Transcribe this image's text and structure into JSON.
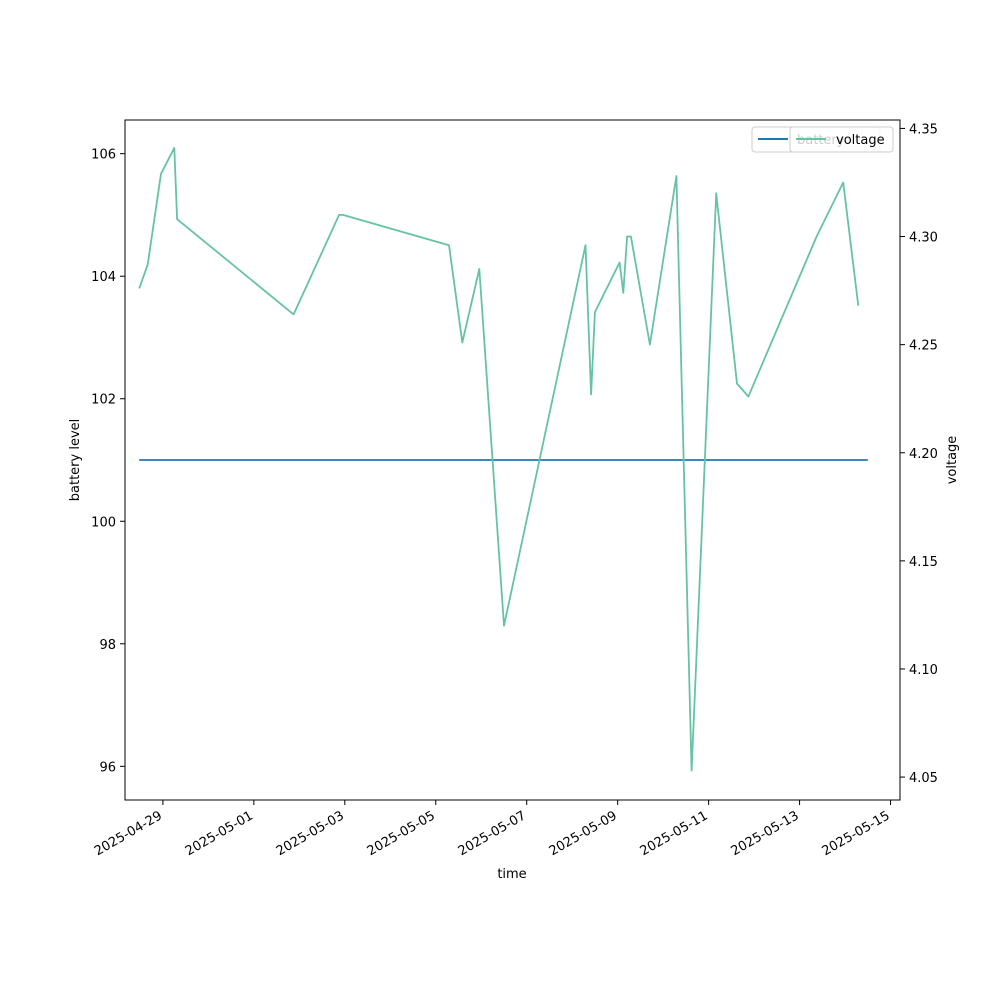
{
  "chart_data": {
    "type": "line",
    "xlabel": "time",
    "ylabel_left": "battery level",
    "ylabel_right": "voltage",
    "x_ticks": [
      "2025-04-29",
      "2025-05-01",
      "2025-05-03",
      "2025-05-05",
      "2025-05-07",
      "2025-05-09",
      "2025-05-11",
      "2025-05-13",
      "2025-05-15"
    ],
    "y_left_ticks": [
      "96",
      "98",
      "100",
      "102",
      "104",
      "106"
    ],
    "y_right_ticks": [
      "4.05",
      "4.10",
      "4.15",
      "4.20",
      "4.25",
      "4.30",
      "4.35"
    ],
    "xlim": [
      "2025-04-28T04:00",
      "2025-05-15T05:00"
    ],
    "ylim_left": [
      95.45,
      106.55
    ],
    "ylim_right": [
      4.0394,
      4.3539
    ],
    "legend_placement": "upper right",
    "grid": false,
    "series": [
      {
        "name": "battery",
        "axis": "left",
        "color": "#1f77b4",
        "x": [
          "2025-04-28T11:30",
          "2025-05-14T12:00"
        ],
        "y": [
          101,
          101
        ]
      },
      {
        "name": "voltage",
        "axis": "right",
        "color": "#66c2a5",
        "x": [
          "2025-04-28T11:30",
          "2025-04-28T16:00",
          "2025-04-28T23:00",
          "2025-04-29T06:00",
          "2025-04-29T07:30",
          "2025-05-01T21:00",
          "2025-05-02T21:00",
          "2025-05-02T23:00",
          "2025-05-05T07:00",
          "2025-05-05T14:00",
          "2025-05-05T23:00",
          "2025-05-06T12:00",
          "2025-05-08T07:00",
          "2025-05-08T10:00",
          "2025-05-08T12:00",
          "2025-05-09T01:00",
          "2025-05-09T03:00",
          "2025-05-09T05:00",
          "2025-05-09T07:00",
          "2025-05-09T17:00",
          "2025-05-10T07:00",
          "2025-05-10T15:00",
          "2025-05-11T04:00",
          "2025-05-11T15:00",
          "2025-05-11T21:00",
          "2025-05-13T09:00",
          "2025-05-13T23:00",
          "2025-05-14T07:00"
        ],
        "y": [
          4.276,
          4.287,
          4.329,
          4.341,
          4.308,
          4.264,
          4.31,
          4.31,
          4.296,
          4.251,
          4.285,
          4.12,
          4.296,
          4.227,
          4.265,
          4.288,
          4.274,
          4.3,
          4.3,
          4.25,
          4.328,
          4.053,
          4.32,
          4.232,
          4.226,
          4.3,
          4.325,
          4.268
        ]
      }
    ]
  },
  "legend": {
    "battery_label": "battery",
    "voltage_label": "voltage"
  }
}
